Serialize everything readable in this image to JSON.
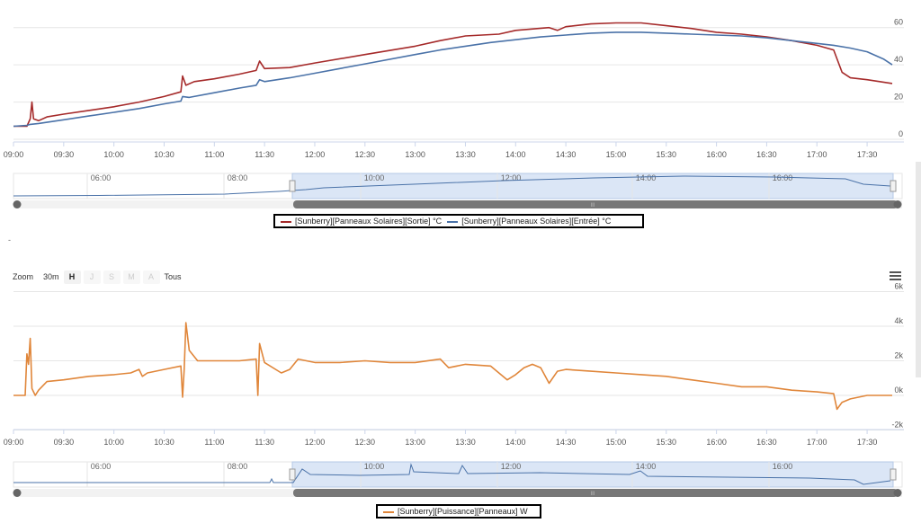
{
  "chart_data": [
    {
      "type": "line",
      "title": "",
      "x_ticks": [
        "09:00",
        "09:30",
        "10:00",
        "10:30",
        "11:00",
        "11:30",
        "12:00",
        "12:30",
        "13:00",
        "13:30",
        "14:00",
        "14:30",
        "15:00",
        "15:30",
        "16:00",
        "16:30",
        "17:00",
        "17:30"
      ],
      "y_ticks": [
        "60",
        "40",
        "20",
        "0"
      ],
      "ylim": [
        0,
        70
      ],
      "xlim": [
        "09:00",
        "17:45"
      ],
      "grid": "horizontal",
      "legend_placement": "bottom-center",
      "series": [
        {
          "name": "[Sunberry][Panneaux Solaires][Sortie] °C",
          "color": "#a52a2a",
          "points": [
            [
              "09:00",
              7
            ],
            [
              "09:08",
              7
            ],
            [
              "09:10",
              11
            ],
            [
              "09:11",
              20
            ],
            [
              "09:12",
              11
            ],
            [
              "09:15",
              10
            ],
            [
              "09:20",
              12
            ],
            [
              "09:30",
              13.5
            ],
            [
              "09:45",
              15.5
            ],
            [
              "10:00",
              17.5
            ],
            [
              "10:15",
              20
            ],
            [
              "10:30",
              23
            ],
            [
              "10:40",
              25.5
            ],
            [
              "10:41",
              34
            ],
            [
              "10:43",
              29
            ],
            [
              "10:48",
              31
            ],
            [
              "11:00",
              32.5
            ],
            [
              "11:15",
              35
            ],
            [
              "11:25",
              37
            ],
            [
              "11:27",
              42
            ],
            [
              "11:30",
              38
            ],
            [
              "11:45",
              38.5
            ],
            [
              "12:00",
              41
            ],
            [
              "12:30",
              45.5
            ],
            [
              "13:00",
              50
            ],
            [
              "13:15",
              53
            ],
            [
              "13:30",
              55.5
            ],
            [
              "13:50",
              56.5
            ],
            [
              "14:00",
              58.5
            ],
            [
              "14:20",
              60
            ],
            [
              "14:25",
              58.5
            ],
            [
              "14:30",
              60.5
            ],
            [
              "14:45",
              62
            ],
            [
              "15:00",
              62.5
            ],
            [
              "15:15",
              62.5
            ],
            [
              "15:30",
              61
            ],
            [
              "15:45",
              59.5
            ],
            [
              "16:00",
              57.5
            ],
            [
              "16:15",
              56.5
            ],
            [
              "16:30",
              55
            ],
            [
              "16:45",
              53
            ],
            [
              "17:00",
              50.5
            ],
            [
              "17:10",
              48
            ],
            [
              "17:15",
              36
            ],
            [
              "17:20",
              33
            ],
            [
              "17:30",
              32
            ],
            [
              "17:45",
              30
            ]
          ]
        },
        {
          "name": "[Sunberry][Panneaux Solaires][Entrée] °C",
          "color": "#4a72a8",
          "points": [
            [
              "09:00",
              7
            ],
            [
              "09:08",
              7.5
            ],
            [
              "09:10",
              8
            ],
            [
              "09:15",
              8.5
            ],
            [
              "09:30",
              10.5
            ],
            [
              "09:45",
              12.5
            ],
            [
              "10:00",
              14.5
            ],
            [
              "10:15",
              16.5
            ],
            [
              "10:30",
              19
            ],
            [
              "10:40",
              20.5
            ],
            [
              "10:41",
              23
            ],
            [
              "10:45",
              22.5
            ],
            [
              "11:00",
              25
            ],
            [
              "11:15",
              27.5
            ],
            [
              "11:25",
              29
            ],
            [
              "11:27",
              32
            ],
            [
              "11:30",
              31
            ],
            [
              "11:45",
              33
            ],
            [
              "12:00",
              35.5
            ],
            [
              "12:15",
              38
            ],
            [
              "12:30",
              40.5
            ],
            [
              "13:00",
              45.5
            ],
            [
              "13:15",
              48
            ],
            [
              "13:30",
              50
            ],
            [
              "13:45",
              52
            ],
            [
              "14:00",
              53.5
            ],
            [
              "14:15",
              55
            ],
            [
              "14:30",
              56
            ],
            [
              "14:45",
              57
            ],
            [
              "15:00",
              57.5
            ],
            [
              "15:15",
              57.5
            ],
            [
              "15:30",
              57
            ],
            [
              "15:45",
              56.5
            ],
            [
              "16:00",
              56
            ],
            [
              "16:15",
              55.5
            ],
            [
              "16:30",
              54.5
            ],
            [
              "16:45",
              53
            ],
            [
              "17:00",
              51.5
            ],
            [
              "17:10",
              50.5
            ],
            [
              "17:20",
              49
            ],
            [
              "17:30",
              47
            ],
            [
              "17:40",
              43
            ],
            [
              "17:45",
              40
            ]
          ]
        }
      ],
      "navigator_ticks": [
        "06:00",
        "08:00",
        "10:00",
        "12:00",
        "14:00",
        "16:00"
      ]
    },
    {
      "type": "line",
      "title": "",
      "x_ticks": [
        "09:00",
        "09:30",
        "10:00",
        "10:30",
        "11:00",
        "11:30",
        "12:00",
        "12:30",
        "13:00",
        "13:30",
        "14:00",
        "14:30",
        "15:00",
        "15:30",
        "16:00",
        "16:30",
        "17:00",
        "17:30"
      ],
      "y_ticks": [
        "6k",
        "4k",
        "2k",
        "0k",
        "-2k"
      ],
      "ylim": [
        -2000,
        6000
      ],
      "xlim": [
        "09:00",
        "17:45"
      ],
      "grid": "horizontal",
      "legend_placement": "bottom-center",
      "series": [
        {
          "name": "[Sunberry][Puissance][Panneaux] W",
          "color": "#e0863a",
          "points": [
            [
              "09:00",
              0
            ],
            [
              "09:07",
              0
            ],
            [
              "09:08",
              2400
            ],
            [
              "09:09",
              1800
            ],
            [
              "09:10",
              3300
            ],
            [
              "09:11",
              400
            ],
            [
              "09:13",
              0
            ],
            [
              "09:15",
              300
            ],
            [
              "09:20",
              800
            ],
            [
              "09:30",
              900
            ],
            [
              "09:45",
              1100
            ],
            [
              "10:00",
              1200
            ],
            [
              "10:10",
              1300
            ],
            [
              "10:15",
              1500
            ],
            [
              "10:17",
              1100
            ],
            [
              "10:20",
              1300
            ],
            [
              "10:30",
              1500
            ],
            [
              "10:40",
              1700
            ],
            [
              "10:41",
              -100
            ],
            [
              "10:42",
              1500
            ],
            [
              "10:43",
              4200
            ],
            [
              "10:45",
              2600
            ],
            [
              "10:50",
              2000
            ],
            [
              "11:00",
              2000
            ],
            [
              "11:15",
              2000
            ],
            [
              "11:25",
              2100
            ],
            [
              "11:26",
              0
            ],
            [
              "11:27",
              3000
            ],
            [
              "11:30",
              1900
            ],
            [
              "11:40",
              1300
            ],
            [
              "11:45",
              1500
            ],
            [
              "11:50",
              2100
            ],
            [
              "12:00",
              1900
            ],
            [
              "12:15",
              1900
            ],
            [
              "12:30",
              2000
            ],
            [
              "12:45",
              1900
            ],
            [
              "13:00",
              1900
            ],
            [
              "13:15",
              2100
            ],
            [
              "13:20",
              1600
            ],
            [
              "13:30",
              1800
            ],
            [
              "13:45",
              1700
            ],
            [
              "13:55",
              900
            ],
            [
              "14:00",
              1200
            ],
            [
              "14:05",
              1600
            ],
            [
              "14:10",
              1800
            ],
            [
              "14:15",
              1600
            ],
            [
              "14:20",
              700
            ],
            [
              "14:25",
              1400
            ],
            [
              "14:30",
              1500
            ],
            [
              "14:45",
              1400
            ],
            [
              "15:00",
              1300
            ],
            [
              "15:15",
              1200
            ],
            [
              "15:30",
              1100
            ],
            [
              "15:45",
              900
            ],
            [
              "16:00",
              700
            ],
            [
              "16:15",
              500
            ],
            [
              "16:30",
              500
            ],
            [
              "16:45",
              300
            ],
            [
              "17:00",
              200
            ],
            [
              "17:10",
              100
            ],
            [
              "17:12",
              -800
            ],
            [
              "17:15",
              -400
            ],
            [
              "17:20",
              -200
            ],
            [
              "17:30",
              0
            ],
            [
              "17:45",
              0
            ]
          ]
        }
      ],
      "navigator_ticks": [
        "06:00",
        "08:00",
        "10:00",
        "12:00",
        "14:00",
        "16:00"
      ]
    }
  ],
  "ui": {
    "legend1": {
      "sortie": "[Sunberry][Panneaux Solaires][Sortie] °C",
      "entree": "[Sunberry][Panneaux Solaires][Entrée] °C"
    },
    "legend2": {
      "puissance": "[Sunberry][Puissance][Panneaux] W"
    },
    "zoom": {
      "label": "Zoom",
      "btn_30m": "30m",
      "btn_h": "H",
      "btn_j": "J",
      "btn_s": "S",
      "btn_m": "M",
      "btn_a": "A",
      "btn_tous": "Tous"
    },
    "dash": "-",
    "nav_grip": "III"
  }
}
